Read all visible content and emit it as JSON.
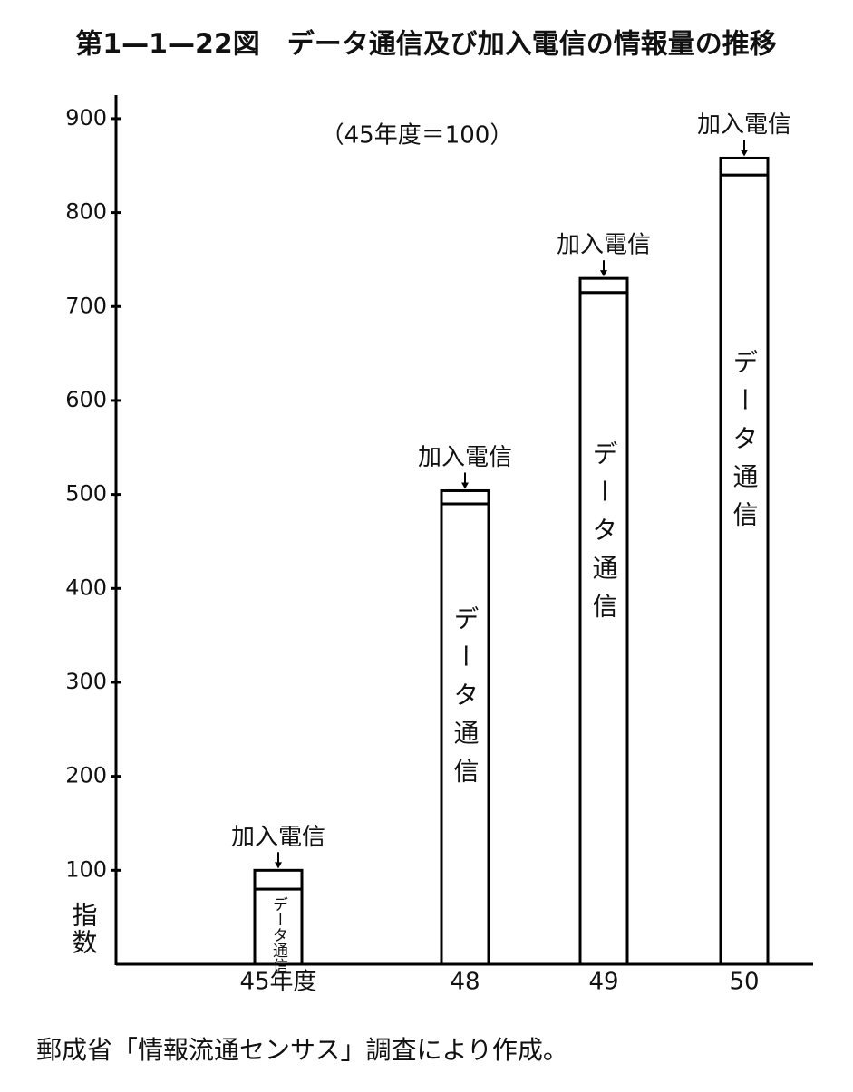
{
  "chart_data": {
    "type": "stacked_bar",
    "title": "第1—1—22図　データ通信及び加入電信の情報量の推移",
    "subtitle": "（45年度＝100）",
    "y_label": "指数",
    "source": "郵成省「情報流通センサス」調査により作成。",
    "categories": [
      "45年度",
      "48",
      "49",
      "50"
    ],
    "series": [
      {
        "name": "データ通信",
        "color": "#ffffff",
        "values": [
          80,
          490,
          715,
          840
        ]
      },
      {
        "name": "加入電信",
        "color": "#ffffff",
        "values": [
          20,
          14,
          15,
          18
        ]
      }
    ],
    "ylim": [
      0,
      925
    ],
    "yticks": [
      100,
      200,
      300,
      400,
      500,
      600,
      700,
      800,
      900
    ]
  }
}
